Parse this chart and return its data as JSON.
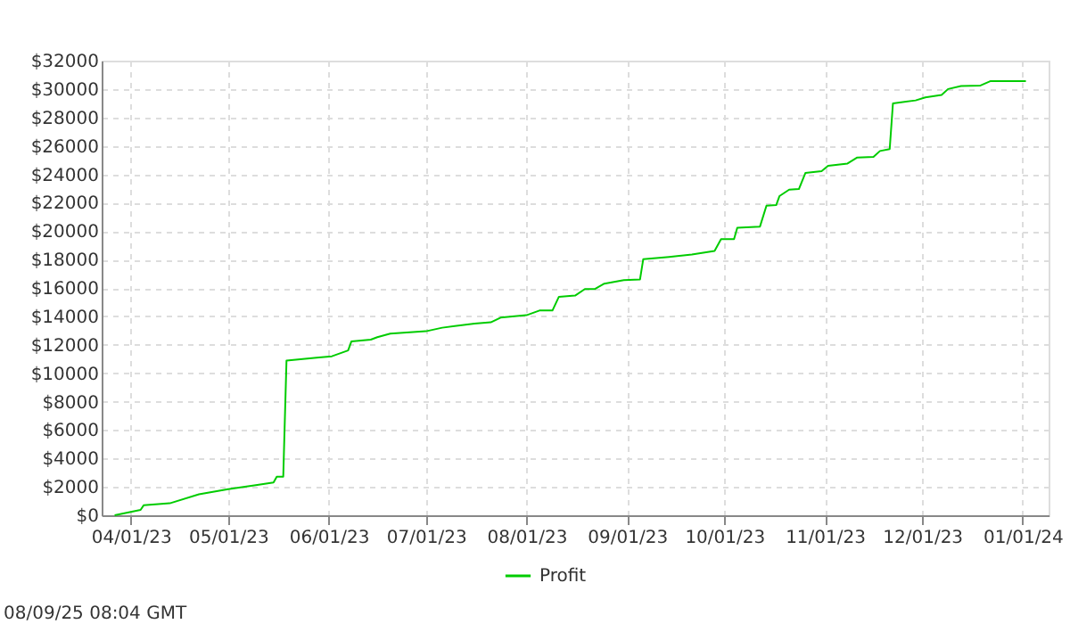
{
  "chart_data": {
    "type": "line",
    "x": [
      "2023-03-27",
      "2023-04-04",
      "2023-04-05",
      "2023-04-13",
      "2023-04-22",
      "2023-05-01",
      "2023-05-10",
      "2023-05-15",
      "2023-05-16",
      "2023-05-18",
      "2023-05-19",
      "2023-05-29",
      "2023-06-02",
      "2023-06-07",
      "2023-06-08",
      "2023-06-14",
      "2023-06-16",
      "2023-06-20",
      "2023-07-01",
      "2023-07-06",
      "2023-07-16",
      "2023-07-21",
      "2023-07-24",
      "2023-08-01",
      "2023-08-05",
      "2023-08-09",
      "2023-08-11",
      "2023-08-16",
      "2023-08-19",
      "2023-08-22",
      "2023-08-25",
      "2023-08-31",
      "2023-09-05",
      "2023-09-06",
      "2023-09-14",
      "2023-09-21",
      "2023-09-28",
      "2023-09-30",
      "2023-10-04",
      "2023-10-05",
      "2023-10-12",
      "2023-10-14",
      "2023-10-17",
      "2023-10-18",
      "2023-10-21",
      "2023-10-24",
      "2023-10-26",
      "2023-10-31",
      "2023-11-02",
      "2023-11-08",
      "2023-11-11",
      "2023-11-16",
      "2023-11-18",
      "2023-11-21",
      "2023-11-22",
      "2023-11-29",
      "2023-12-02",
      "2023-12-07",
      "2023-12-09",
      "2023-12-13",
      "2023-12-19",
      "2023-12-22",
      "2024-01-02"
    ],
    "series": [
      {
        "name": "Profit",
        "color": "#00cc00",
        "values": [
          0,
          380,
          710,
          840,
          1470,
          1840,
          2140,
          2300,
          2720,
          2720,
          10890,
          11100,
          11190,
          11600,
          12230,
          12360,
          12530,
          12780,
          12950,
          13200,
          13490,
          13580,
          13910,
          14080,
          14410,
          14410,
          15380,
          15460,
          15920,
          15920,
          16300,
          16550,
          16590,
          18020,
          18180,
          18350,
          18600,
          19440,
          19440,
          20240,
          20320,
          21790,
          21830,
          22460,
          22920,
          22960,
          24090,
          24220,
          24600,
          24760,
          25180,
          25220,
          25640,
          25770,
          28990,
          29200,
          29410,
          29580,
          30000,
          30210,
          30250,
          30550,
          30550
        ]
      }
    ],
    "xlim": [
      "2023-03-23",
      "2024-01-09"
    ],
    "xticks": [
      {
        "value": "2023-04-01",
        "label": "04/01/23"
      },
      {
        "value": "2023-05-01",
        "label": "05/01/23"
      },
      {
        "value": "2023-06-01",
        "label": "06/01/23"
      },
      {
        "value": "2023-07-01",
        "label": "07/01/23"
      },
      {
        "value": "2023-08-01",
        "label": "08/01/23"
      },
      {
        "value": "2023-09-01",
        "label": "09/01/23"
      },
      {
        "value": "2023-10-01",
        "label": "10/01/23"
      },
      {
        "value": "2023-11-01",
        "label": "11/01/23"
      },
      {
        "value": "2023-12-01",
        "label": "12/01/23"
      },
      {
        "value": "2024-01-01",
        "label": "01/01/24"
      }
    ],
    "ylim": [
      0,
      32000
    ],
    "yticks": [
      {
        "value": 0,
        "label": "$0"
      },
      {
        "value": 2000,
        "label": "$2000"
      },
      {
        "value": 4000,
        "label": "$4000"
      },
      {
        "value": 6000,
        "label": "$6000"
      },
      {
        "value": 8000,
        "label": "$8000"
      },
      {
        "value": 10000,
        "label": "$10000"
      },
      {
        "value": 12000,
        "label": "$12000"
      },
      {
        "value": 14000,
        "label": "$14000"
      },
      {
        "value": 16000,
        "label": "$16000"
      },
      {
        "value": 18000,
        "label": "$18000"
      },
      {
        "value": 20000,
        "label": "$20000"
      },
      {
        "value": 22000,
        "label": "$22000"
      },
      {
        "value": 24000,
        "label": "$24000"
      },
      {
        "value": 26000,
        "label": "$26000"
      },
      {
        "value": 28000,
        "label": "$28000"
      },
      {
        "value": 30000,
        "label": "$30000"
      },
      {
        "value": 32000,
        "label": "$32000"
      }
    ],
    "grid": true,
    "legend": "bottom",
    "marker": "none",
    "line_style": "solid",
    "annotations": [
      "08/09/25 08:04 GMT"
    ]
  }
}
